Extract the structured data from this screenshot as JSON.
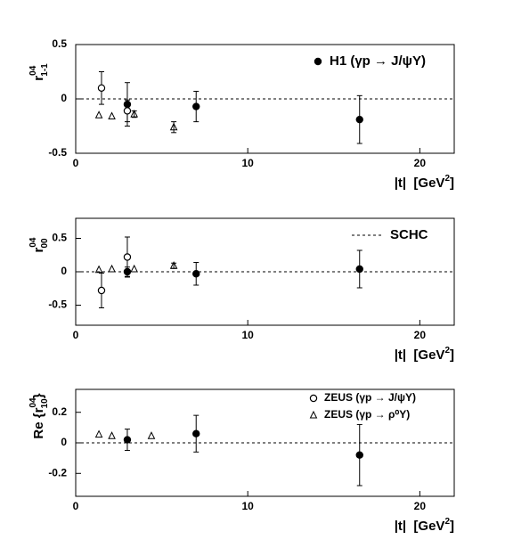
{
  "chart_data": [
    {
      "type": "scatter",
      "ylabel": {
        "prefix": "",
        "base": "r",
        "sup": "04",
        "sub": "1-1",
        "suffix": ""
      },
      "xlabel": {
        "base": "|t|  [GeV",
        "sup": "2",
        "suffix": "]"
      },
      "xlim": [
        0,
        22
      ],
      "xticks": [
        0,
        10,
        20
      ],
      "ylim": [
        -0.5,
        0.5
      ],
      "yticks": [
        -0.5,
        0,
        0.5
      ],
      "hline": {
        "value": 0
      },
      "legend": "upper right",
      "series": [
        {
          "name": "H1 (γp → J/ψY)",
          "marker": "filled-circle",
          "color": "#000000",
          "x": [
            3.0,
            7.0,
            16.5
          ],
          "values": [
            -0.05,
            -0.07,
            -0.19
          ],
          "errors": [
            0.2,
            0.14,
            0.22
          ]
        },
        {
          "marker": "open-circle",
          "color": "#000000",
          "x": [
            1.5,
            3.0
          ],
          "values": [
            0.1,
            -0.11
          ],
          "errors": [
            0.15,
            0.1
          ]
        },
        {
          "marker": "triangle",
          "color": "#000000",
          "x": [
            1.35,
            2.1,
            3.4,
            5.7
          ],
          "values": [
            -0.15,
            -0.16,
            -0.14,
            -0.26
          ],
          "errors": [
            null,
            null,
            0.03,
            0.05
          ]
        }
      ]
    },
    {
      "type": "scatter",
      "ylabel": {
        "prefix": "",
        "base": "r",
        "sup": "04",
        "sub": "00",
        "suffix": ""
      },
      "xlabel": {
        "base": "|t|  [GeV",
        "sup": "2",
        "suffix": "]"
      },
      "xlim": [
        0,
        22
      ],
      "xticks": [
        0,
        10,
        20
      ],
      "ylim": [
        -0.8,
        0.8
      ],
      "yticks": [
        -0.5,
        0,
        0.5
      ],
      "hline": {
        "value": 0,
        "label": "SCHC"
      },
      "legend": "upper right",
      "series": [
        {
          "marker": "filled-circle",
          "color": "#000000",
          "x": [
            3.0,
            7.0,
            16.5
          ],
          "values": [
            0.0,
            -0.03,
            0.04
          ],
          "errors": [
            0.07,
            0.17,
            0.28
          ]
        },
        {
          "marker": "open-circle",
          "color": "#000000",
          "x": [
            1.5,
            3.0
          ],
          "values": [
            -0.28,
            0.22
          ],
          "errors": [
            0.26,
            0.3
          ]
        },
        {
          "marker": "triangle",
          "color": "#000000",
          "x": [
            1.35,
            2.1,
            3.4,
            5.7
          ],
          "values": [
            0.03,
            0.04,
            0.04,
            0.09
          ],
          "errors": [
            null,
            null,
            null,
            0.04
          ]
        }
      ]
    },
    {
      "type": "scatter",
      "ylabel": {
        "prefix": "Re {",
        "base": "r",
        "sup": "04",
        "sub": "10",
        "suffix": "}"
      },
      "xlabel": {
        "base": "|t|  [GeV",
        "sup": "2",
        "suffix": "]"
      },
      "xlim": [
        0,
        22
      ],
      "xticks": [
        0,
        10,
        20
      ],
      "ylim": [
        -0.35,
        0.35
      ],
      "yticks": [
        -0.2,
        0,
        0.2
      ],
      "hline": {
        "value": 0
      },
      "legend": "upper right",
      "series": [
        {
          "marker": "filled-circle",
          "color": "#000000",
          "x": [
            3.0,
            7.0,
            16.5
          ],
          "values": [
            0.02,
            0.06,
            -0.08
          ],
          "errors": [
            0.07,
            0.12,
            0.2
          ]
        },
        {
          "name": "ZEUS (γp → J/ψY)",
          "marker": "open-circle",
          "color": "#000000",
          "x": [],
          "values": [],
          "errors": []
        },
        {
          "name": "ZEUS (γp → ρ⁰Y)",
          "marker": "triangle",
          "color": "#000000",
          "x": [
            1.35,
            2.1,
            4.4
          ],
          "values": [
            0.055,
            0.045,
            0.045
          ],
          "errors": [
            null,
            null,
            null
          ]
        }
      ]
    }
  ]
}
